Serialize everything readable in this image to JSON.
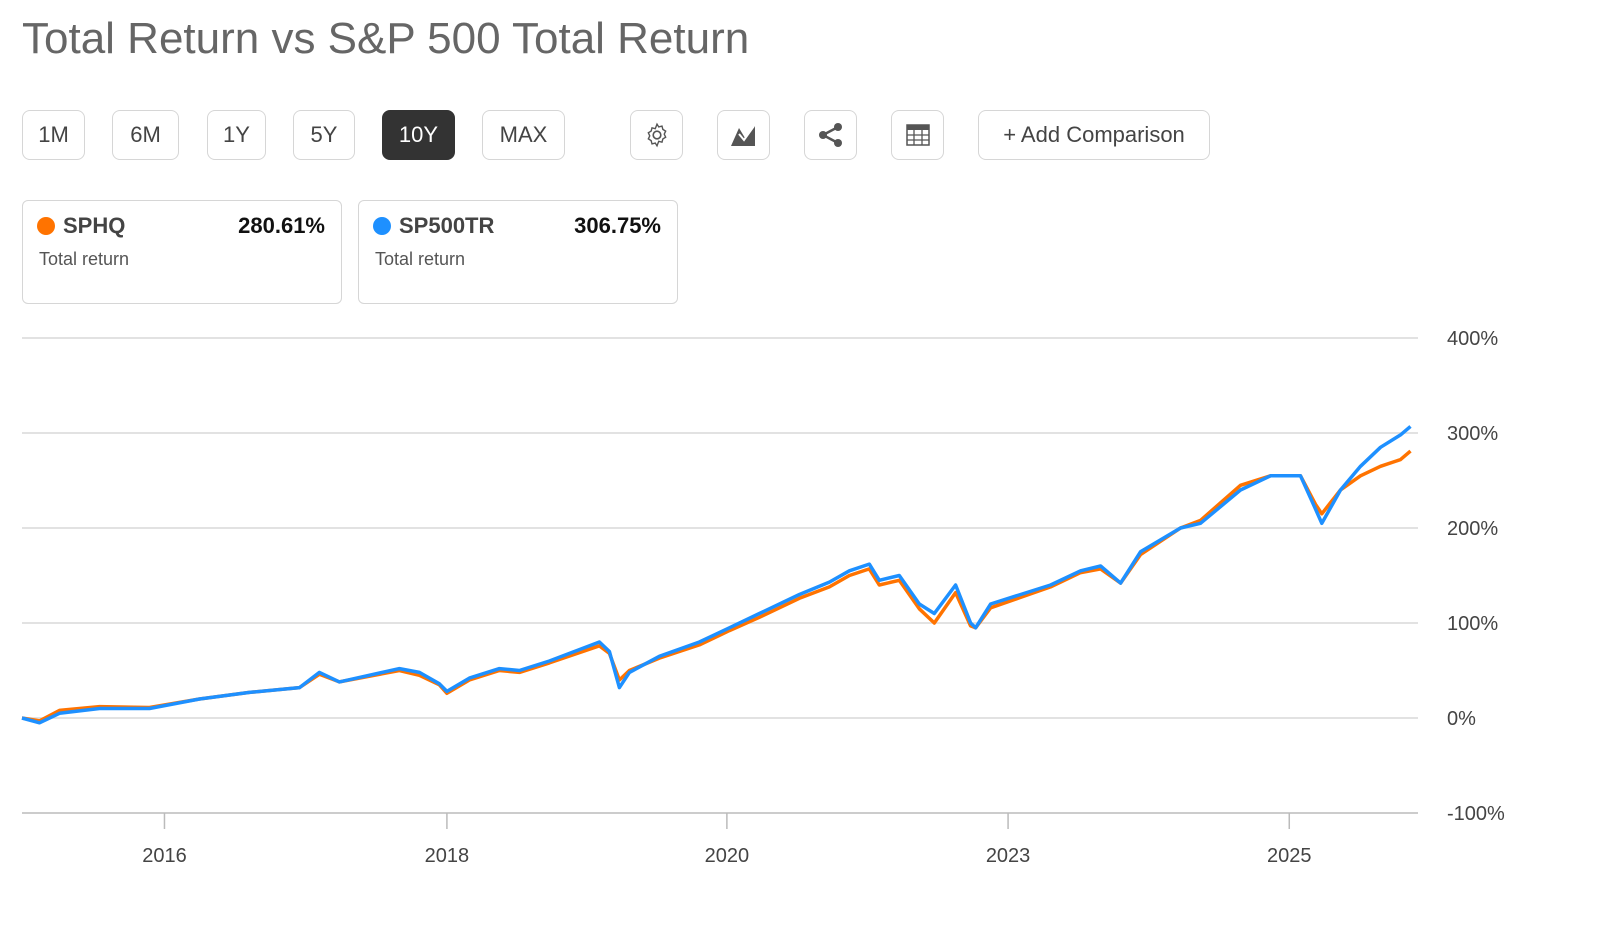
{
  "title": "Total Return vs S&P 500 Total Return",
  "ranges": [
    {
      "label": "1M"
    },
    {
      "label": "6M"
    },
    {
      "label": "1Y"
    },
    {
      "label": "5Y"
    },
    {
      "label": "10Y",
      "active": true
    },
    {
      "label": "MAX"
    }
  ],
  "tools": [
    "gear-icon",
    "chart-type-icon",
    "share-icon",
    "table-icon"
  ],
  "add_comparison": "+ Add Comparison",
  "cards": [
    {
      "symbol": "SPHQ",
      "value": "280.61%",
      "sub": "Total return",
      "color": "#ff7300"
    },
    {
      "symbol": "SP500TR",
      "value": "306.75%",
      "sub": "Total return",
      "color": "#1e90ff"
    }
  ],
  "chart_data": {
    "type": "line",
    "title": "",
    "xlabel": "",
    "ylabel": "",
    "ylim": [
      -100,
      400
    ],
    "xlim": [
      2014.86,
      2026.03
    ],
    "yticks": [
      {
        "v": 400,
        "label": "400%"
      },
      {
        "v": 300,
        "label": "300%"
      },
      {
        "v": 200,
        "label": "200%"
      },
      {
        "v": 100,
        "label": "100%"
      },
      {
        "v": 0,
        "label": "0%"
      },
      {
        "v": -100,
        "label": "-100%"
      }
    ],
    "xticks": [
      {
        "v": 2016,
        "label": "2016"
      },
      {
        "v": 2018.26,
        "label": "2018"
      },
      {
        "v": 2020.5,
        "label": "2020"
      },
      {
        "v": 2022.75,
        "label": "2023"
      },
      {
        "v": 2025,
        "label": "2025"
      }
    ],
    "grid": true,
    "x": [
      2014.86,
      2015.0,
      2015.16,
      2015.48,
      2015.88,
      2016.28,
      2016.68,
      2017.08,
      2017.24,
      2017.4,
      2017.88,
      2018.04,
      2018.2,
      2018.26,
      2018.44,
      2018.68,
      2018.84,
      2019.08,
      2019.48,
      2019.56,
      2019.64,
      2019.72,
      2019.96,
      2020.28,
      2020.52,
      2020.76,
      2021.08,
      2021.32,
      2021.48,
      2021.64,
      2021.72,
      2021.88,
      2022.04,
      2022.16,
      2022.33,
      2022.45,
      2022.49,
      2022.61,
      2022.85,
      2023.09,
      2023.33,
      2023.49,
      2023.65,
      2023.81,
      2024.13,
      2024.29,
      2024.61,
      2024.85,
      2025.09,
      2025.21,
      2025.26,
      2025.41,
      2025.57,
      2025.73,
      2025.89,
      2025.97
    ],
    "series": [
      {
        "name": "SPHQ",
        "color": "#ff7300",
        "values": [
          0,
          -3,
          8,
          12,
          11,
          20,
          27,
          32,
          46,
          38,
          50,
          45,
          35,
          26,
          40,
          50,
          48,
          58,
          76,
          68,
          40,
          50,
          63,
          77,
          92,
          106,
          126,
          138,
          150,
          157,
          140,
          145,
          115,
          100,
          132,
          97,
          95,
          116,
          127,
          138,
          153,
          157,
          142,
          172,
          200,
          208,
          245,
          255,
          255,
          225,
          215,
          240,
          255,
          265,
          272,
          281
        ]
      },
      {
        "name": "SP500TR",
        "color": "#1e90ff",
        "values": [
          0,
          -5,
          5,
          10,
          10,
          20,
          27,
          32,
          48,
          38,
          52,
          48,
          36,
          28,
          42,
          52,
          50,
          60,
          80,
          70,
          32,
          48,
          65,
          80,
          95,
          110,
          130,
          143,
          155,
          162,
          145,
          150,
          120,
          110,
          140,
          100,
          95,
          120,
          130,
          140,
          155,
          160,
          142,
          175,
          200,
          205,
          240,
          255,
          255,
          220,
          205,
          240,
          265,
          285,
          298,
          307
        ]
      }
    ]
  }
}
